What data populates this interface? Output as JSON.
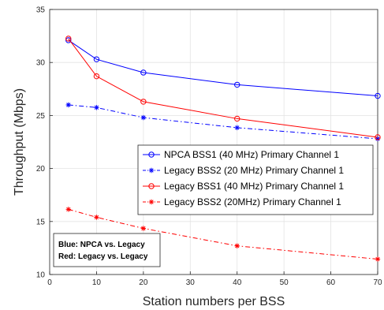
{
  "chart_data": {
    "type": "line",
    "xlabel": "Station numbers per BSS",
    "ylabel": "Throughput (Mbps)",
    "xlim": [
      0,
      70
    ],
    "ylim": [
      10,
      35
    ],
    "xticks": [
      0,
      10,
      20,
      30,
      40,
      50,
      60,
      70
    ],
    "yticks": [
      10,
      15,
      20,
      25,
      30,
      35
    ],
    "grid": true,
    "legend_position": "center-right",
    "x": [
      4,
      10,
      20,
      40,
      70
    ],
    "series": [
      {
        "name": "NPCA BSS1 (40 MHz) Primary Channel 1",
        "color": "#0000ff",
        "line_style": "solid",
        "marker": "circle",
        "values": [
          32.1,
          30.3,
          29.05,
          27.9,
          26.85
        ]
      },
      {
        "name": "Legacy BSS2 (20 MHz) Primary Channel 1",
        "color": "#0000ff",
        "line_style": "dashdot",
        "marker": "star",
        "values": [
          26.0,
          25.75,
          24.8,
          23.85,
          22.8
        ]
      },
      {
        "name": "Legacy BSS1 (40 MHz) Primary Channel 1",
        "color": "#ff0000",
        "line_style": "solid",
        "marker": "circle",
        "values": [
          32.25,
          28.7,
          26.3,
          24.7,
          22.95
        ]
      },
      {
        "name": "Legacy BSS2 (20MHz) Primary Channel 1",
        "color": "#ff0000",
        "line_style": "dashdot",
        "marker": "star",
        "values": [
          16.15,
          15.4,
          14.35,
          12.7,
          11.45
        ]
      }
    ],
    "annotation": {
      "lines": [
        "Blue: NPCA vs. Legacy",
        "Red: Legacy vs. Legacy"
      ]
    }
  }
}
